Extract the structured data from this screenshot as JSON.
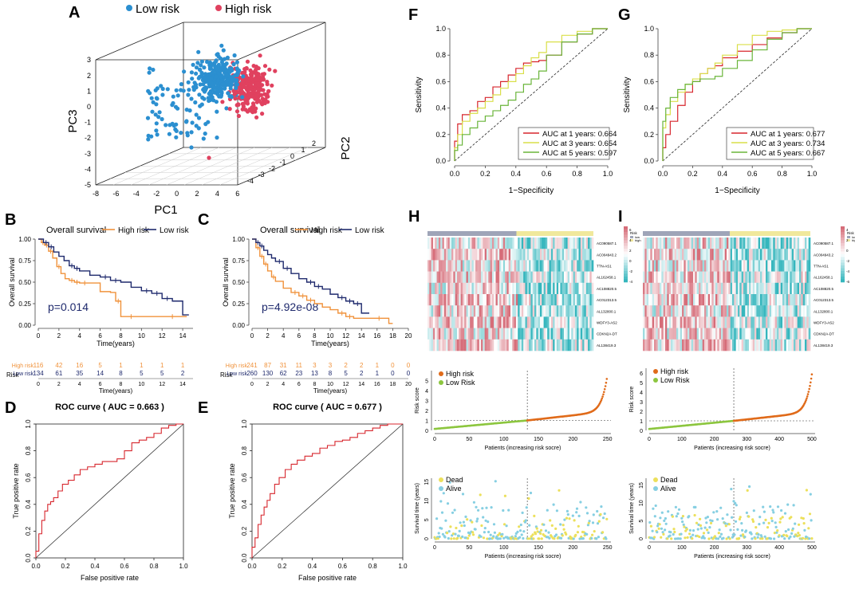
{
  "figure": {
    "panel_letters": [
      "A",
      "B",
      "C",
      "D",
      "E",
      "F",
      "G",
      "H",
      "I"
    ]
  },
  "colors": {
    "low": "#2b8fd0",
    "high": "#e0415f",
    "km_high": "#f0923b",
    "km_low": "#1f2a6d",
    "roc_red": "#d7262d",
    "roc_yellow": "#d9df49",
    "roc_green": "#6ab53a",
    "risk_high": "#e06b1a",
    "risk_low": "#8cc63f",
    "dead": "#ece05b",
    "alive": "#86cfe2",
    "heat_pink": "#d66d79",
    "heat_cyan": "#35b6bd",
    "bar_gray": "#9fa5b8",
    "bar_yellow": "#f0e89c"
  },
  "chart_data": [
    {
      "id": "A",
      "type": "scatter",
      "legend": [
        {
          "label": "Low risk",
          "color": "low"
        },
        {
          "label": "High risk",
          "color": "high"
        }
      ],
      "axes": {
        "x": "PC1",
        "y": "PC2",
        "z": "PC3"
      },
      "x_ticks": [
        "-8",
        "-6",
        "-4",
        "-2",
        "0",
        "2",
        "4",
        "6"
      ],
      "y_ticks": [
        "-4",
        "-3",
        "-2",
        "-1",
        "0",
        "1",
        "2"
      ],
      "z_ticks": [
        "-5",
        "-4",
        "-3",
        "-2",
        "-1",
        "0",
        "1",
        "2",
        "3"
      ],
      "xlim": [
        -8,
        6
      ],
      "ylim": [
        -4,
        2
      ],
      "zlim": [
        -5,
        3
      ]
    },
    {
      "id": "B",
      "type": "line",
      "title": "Overall survival",
      "legend": [
        "High risk",
        "Low risk"
      ],
      "pvalue": "p=0.014",
      "ylabel": "Overall survival",
      "xlabel": "Time(years)",
      "x_ticks": [
        "0",
        "2",
        "4",
        "6",
        "8",
        "10",
        "12",
        "14"
      ],
      "y_ticks": [
        "0.00",
        "0.25",
        "0.50",
        "0.75",
        "1.00"
      ],
      "xlim": [
        0,
        15
      ],
      "ylim": [
        0,
        1
      ],
      "series": [
        {
          "name": "High risk",
          "x": [
            0,
            0.3,
            0.6,
            1,
            1.4,
            1.8,
            2.2,
            2.6,
            3,
            3.5,
            4,
            5,
            6,
            7,
            7.5,
            8,
            10,
            12,
            14,
            14.4
          ],
          "y": [
            1,
            0.96,
            0.93,
            0.86,
            0.78,
            0.68,
            0.6,
            0.54,
            0.52,
            0.5,
            0.49,
            0.49,
            0.39,
            0.38,
            0.28,
            0.1,
            0.1,
            0.1,
            0.1,
            0.1
          ]
        },
        {
          "name": "Low risk",
          "x": [
            0,
            0.5,
            1,
            1.5,
            2,
            2.5,
            3,
            3.5,
            4,
            5,
            6,
            7,
            8,
            9,
            10,
            11,
            12,
            13,
            14,
            14.6
          ],
          "y": [
            1,
            0.96,
            0.91,
            0.85,
            0.8,
            0.75,
            0.69,
            0.66,
            0.63,
            0.58,
            0.56,
            0.52,
            0.5,
            0.44,
            0.4,
            0.37,
            0.31,
            0.28,
            0.12,
            0.12
          ]
        }
      ],
      "risk_table": {
        "label": "Risk",
        "time_ticks": [
          "0",
          "2",
          "4",
          "6",
          "8",
          "10",
          "12",
          "14"
        ],
        "rows": [
          {
            "name": "High risk",
            "values": [
              "116",
              "42",
              "16",
              "5",
              "1",
              "1",
              "1",
              "1"
            ]
          },
          {
            "name": "Low risk",
            "values": [
              "134",
              "61",
              "35",
              "14",
              "8",
              "5",
              "5",
              "2"
            ]
          }
        ],
        "xlabel": "Time(years)"
      }
    },
    {
      "id": "C",
      "type": "line",
      "title": "Overall survival",
      "legend": [
        "High risk",
        "Low risk"
      ],
      "pvalue": "p=4.92e-08",
      "ylabel": "Overall survival",
      "xlabel": "Time(years)",
      "x_ticks": [
        "0",
        "2",
        "4",
        "6",
        "8",
        "10",
        "12",
        "14",
        "16",
        "18",
        "20"
      ],
      "y_ticks": [
        "0.00",
        "0.25",
        "0.50",
        "0.75",
        "1.00"
      ],
      "xlim": [
        0,
        20
      ],
      "ylim": [
        0,
        1
      ],
      "series": [
        {
          "name": "High risk",
          "x": [
            0,
            0.5,
            1,
            1.5,
            2,
            2.5,
            3,
            4,
            5,
            6,
            7,
            8,
            9,
            10,
            11,
            12,
            13,
            15,
            17.5,
            18
          ],
          "y": [
            1,
            0.9,
            0.8,
            0.71,
            0.63,
            0.56,
            0.51,
            0.43,
            0.38,
            0.34,
            0.29,
            0.25,
            0.21,
            0.18,
            0.14,
            0.1,
            0.08,
            0.08,
            0.02,
            0.02
          ]
        },
        {
          "name": "Low risk",
          "x": [
            0,
            0.5,
            1,
            1.5,
            2,
            2.5,
            3,
            4,
            5,
            6,
            7,
            8,
            9,
            10,
            11,
            12,
            13,
            14,
            15
          ],
          "y": [
            1,
            0.96,
            0.92,
            0.87,
            0.82,
            0.78,
            0.74,
            0.66,
            0.6,
            0.54,
            0.5,
            0.45,
            0.42,
            0.36,
            0.32,
            0.28,
            0.25,
            0.14,
            0.14
          ]
        }
      ],
      "risk_table": {
        "label": "Risk",
        "time_ticks": [
          "0",
          "2",
          "4",
          "6",
          "8",
          "10",
          "12",
          "14",
          "16",
          "18",
          "20"
        ],
        "rows": [
          {
            "name": "High risk",
            "values": [
              "241",
              "87",
              "31",
              "11",
              "3",
              "3",
              "2",
              "2",
              "1",
              "0",
              "0"
            ]
          },
          {
            "name": "Low risk",
            "values": [
              "260",
              "130",
              "62",
              "23",
              "13",
              "8",
              "5",
              "2",
              "1",
              "0",
              "0"
            ]
          }
        ],
        "xlabel": "Time(years)"
      }
    },
    {
      "id": "D",
      "type": "line",
      "title": "ROC curve ( AUC =  0.663 )",
      "xlabel": "False positive rate",
      "ylabel": "True positive rate",
      "x_ticks": [
        "0.0",
        "0.2",
        "0.4",
        "0.6",
        "0.8",
        "1.0"
      ],
      "y_ticks": [
        "0.0",
        "0.2",
        "0.4",
        "0.6",
        "0.8",
        "1.0"
      ],
      "xlim": [
        0,
        1
      ],
      "ylim": [
        0,
        1
      ],
      "series": [
        {
          "name": "ROC",
          "x": [
            0,
            0.02,
            0.04,
            0.06,
            0.08,
            0.1,
            0.12,
            0.15,
            0.18,
            0.22,
            0.26,
            0.3,
            0.35,
            0.4,
            0.45,
            0.5,
            0.55,
            0.6,
            0.65,
            0.7,
            0.75,
            0.8,
            0.85,
            0.9,
            0.95,
            1
          ],
          "y": [
            0,
            0.05,
            0.18,
            0.28,
            0.35,
            0.4,
            0.42,
            0.45,
            0.5,
            0.55,
            0.58,
            0.62,
            0.66,
            0.68,
            0.7,
            0.72,
            0.72,
            0.74,
            0.8,
            0.86,
            0.88,
            0.9,
            0.93,
            0.97,
            0.99,
            1
          ]
        }
      ]
    },
    {
      "id": "E",
      "type": "line",
      "title": "ROC curve ( AUC =  0.677 )",
      "xlabel": "False positive rate",
      "ylabel": "True positive rate",
      "x_ticks": [
        "0.0",
        "0.2",
        "0.4",
        "0.6",
        "0.8",
        "1.0"
      ],
      "y_ticks": [
        "0.0",
        "0.2",
        "0.4",
        "0.6",
        "0.8",
        "1.0"
      ],
      "xlim": [
        0,
        1
      ],
      "ylim": [
        0,
        1
      ],
      "series": [
        {
          "name": "ROC",
          "x": [
            0,
            0.02,
            0.04,
            0.06,
            0.08,
            0.1,
            0.12,
            0.15,
            0.18,
            0.22,
            0.26,
            0.3,
            0.35,
            0.4,
            0.45,
            0.5,
            0.55,
            0.6,
            0.65,
            0.7,
            0.75,
            0.8,
            0.85,
            0.9,
            0.95,
            1
          ],
          "y": [
            0,
            0.08,
            0.15,
            0.25,
            0.32,
            0.38,
            0.43,
            0.48,
            0.55,
            0.6,
            0.66,
            0.7,
            0.73,
            0.76,
            0.78,
            0.82,
            0.84,
            0.87,
            0.88,
            0.9,
            0.93,
            0.95,
            0.97,
            0.99,
            1,
            1
          ]
        }
      ]
    },
    {
      "id": "F",
      "type": "line",
      "xlabel": "1−Specificity",
      "ylabel": "Sensitivity",
      "x_ticks": [
        "0.0",
        "0.2",
        "0.4",
        "0.6",
        "0.8",
        "1.0"
      ],
      "y_ticks": [
        "0.0",
        "0.2",
        "0.4",
        "0.6",
        "0.8",
        "1.0"
      ],
      "xlim": [
        0,
        1
      ],
      "ylim": [
        0,
        1
      ],
      "series": [
        {
          "name": "AUC at 1 years: 0.664",
          "color": "roc_red",
          "x": [
            0,
            0.02,
            0.05,
            0.1,
            0.15,
            0.2,
            0.25,
            0.3,
            0.35,
            0.4,
            0.45,
            0.5,
            0.55,
            0.6,
            0.7,
            0.8,
            0.9,
            1
          ],
          "y": [
            0,
            0.15,
            0.28,
            0.35,
            0.38,
            0.45,
            0.48,
            0.56,
            0.6,
            0.65,
            0.7,
            0.74,
            0.75,
            0.76,
            0.8,
            0.9,
            0.96,
            1
          ]
        },
        {
          "name": "AUC at 3 years: 0.654",
          "color": "roc_yellow",
          "x": [
            0,
            0.02,
            0.05,
            0.1,
            0.15,
            0.2,
            0.25,
            0.3,
            0.35,
            0.4,
            0.45,
            0.5,
            0.55,
            0.6,
            0.7,
            0.8,
            0.9,
            1
          ],
          "y": [
            0,
            0.1,
            0.2,
            0.3,
            0.36,
            0.4,
            0.45,
            0.5,
            0.55,
            0.6,
            0.66,
            0.72,
            0.78,
            0.82,
            0.9,
            0.95,
            0.98,
            1
          ]
        },
        {
          "name": "AUC at 5 years: 0.597",
          "color": "roc_green",
          "x": [
            0,
            0.02,
            0.05,
            0.1,
            0.15,
            0.2,
            0.25,
            0.3,
            0.35,
            0.4,
            0.45,
            0.5,
            0.55,
            0.6,
            0.7,
            0.8,
            0.9,
            1
          ],
          "y": [
            0,
            0.08,
            0.12,
            0.2,
            0.25,
            0.3,
            0.34,
            0.38,
            0.42,
            0.46,
            0.52,
            0.58,
            0.62,
            0.68,
            0.8,
            0.9,
            0.96,
            1
          ]
        }
      ]
    },
    {
      "id": "G",
      "type": "line",
      "xlabel": "1−Specificity",
      "ylabel": "Sensitivity",
      "x_ticks": [
        "0.0",
        "0.2",
        "0.4",
        "0.6",
        "0.8",
        "1.0"
      ],
      "y_ticks": [
        "0.0",
        "0.2",
        "0.4",
        "0.6",
        "0.8",
        "1.0"
      ],
      "xlim": [
        0,
        1
      ],
      "ylim": [
        0,
        1
      ],
      "series": [
        {
          "name": "AUC at 1 years: 0.677",
          "color": "roc_red",
          "x": [
            0,
            0.02,
            0.05,
            0.1,
            0.15,
            0.2,
            0.25,
            0.3,
            0.35,
            0.4,
            0.5,
            0.6,
            0.7,
            0.8,
            0.9,
            1
          ],
          "y": [
            0,
            0.1,
            0.2,
            0.3,
            0.42,
            0.52,
            0.6,
            0.66,
            0.7,
            0.72,
            0.78,
            0.83,
            0.88,
            0.93,
            0.97,
            1
          ]
        },
        {
          "name": "AUC at 3 years: 0.734",
          "color": "roc_yellow",
          "x": [
            0,
            0.02,
            0.05,
            0.1,
            0.15,
            0.2,
            0.25,
            0.3,
            0.35,
            0.4,
            0.5,
            0.6,
            0.7,
            0.8,
            0.9,
            1
          ],
          "y": [
            0,
            0.25,
            0.35,
            0.45,
            0.52,
            0.58,
            0.62,
            0.66,
            0.7,
            0.74,
            0.8,
            0.88,
            0.95,
            0.98,
            0.99,
            1
          ]
        },
        {
          "name": "AUC at 5 years: 0.667",
          "color": "roc_green",
          "x": [
            0,
            0.02,
            0.05,
            0.1,
            0.15,
            0.2,
            0.25,
            0.3,
            0.35,
            0.4,
            0.5,
            0.6,
            0.7,
            0.8,
            0.9,
            1
          ],
          "y": [
            0,
            0.3,
            0.4,
            0.48,
            0.54,
            0.58,
            0.6,
            0.62,
            0.62,
            0.64,
            0.7,
            0.76,
            0.84,
            0.92,
            0.97,
            1
          ]
        }
      ]
    },
    {
      "id": "H",
      "type": "heatmap",
      "genes": [
        "AC090587.1",
        "AC004943.2",
        "TTN-AS1",
        "AL162458.1",
        "AC108820.5",
        "AC012313.5",
        "AL132800.1",
        "WDFY3-AS2",
        "CDKN2A-DT",
        "AL138419.3"
      ],
      "legend_title": "Risk",
      "legend_items": [
        "low",
        "high"
      ],
      "scale": [
        "6",
        "4",
        "2",
        "0",
        "-2",
        "-4"
      ],
      "n_low": 134,
      "n_high": 116
    },
    {
      "id": "I",
      "type": "heatmap",
      "genes": [
        "AC090587.1",
        "AC004943.2",
        "TTN-AS1",
        "AL162458.1",
        "AC108820.5",
        "AC012313.5",
        "AL132800.1",
        "WDFY3-AS2",
        "CDKN2A-DT",
        "AL138419.3"
      ],
      "legend_title": "Risk",
      "legend_items": [
        "low",
        "high"
      ],
      "scale": [
        "4",
        "2",
        "0",
        "-2",
        "-4",
        "-6"
      ],
      "n_low": 260,
      "n_high": 241
    },
    {
      "id": "H2",
      "type": "scatter",
      "legend": [
        "High risk",
        "Low Risk"
      ],
      "xlabel": "Patients (increasing risk socre)",
      "ylabel": "Risk score",
      "x_ticks": [
        "0",
        "50",
        "100",
        "150",
        "200",
        "250"
      ],
      "y_ticks": [
        "0",
        "1",
        "2",
        "3",
        "4",
        "5"
      ],
      "xlim": [
        0,
        255
      ],
      "ylim": [
        0,
        6
      ],
      "cutoff_index": 134,
      "cutoff_score": 1,
      "n": 250,
      "max_score": 5.6
    },
    {
      "id": "I2",
      "type": "scatter",
      "legend": [
        "High risk",
        "Low Risk"
      ],
      "xlabel": "Patients (increasing risk socre)",
      "ylabel": "Risk score",
      "x_ticks": [
        "0",
        "100",
        "200",
        "300",
        "400",
        "500"
      ],
      "y_ticks": [
        "0",
        "1",
        "2",
        "3",
        "4",
        "5",
        "6"
      ],
      "xlim": [
        0,
        510
      ],
      "ylim": [
        0,
        6.5
      ],
      "cutoff_index": 260,
      "cutoff_score": 1,
      "n": 501,
      "max_score": 6.1
    },
    {
      "id": "H3",
      "type": "scatter",
      "legend": [
        "Dead",
        "Alive"
      ],
      "xlabel": "Patients (increasing risk socre)",
      "ylabel": "Survival time (years)",
      "x_ticks": [
        "0",
        "50",
        "100",
        "150",
        "200",
        "250"
      ],
      "y_ticks": [
        "0",
        "5",
        "10",
        "15"
      ],
      "xlim": [
        0,
        255
      ],
      "ylim": [
        0,
        16
      ],
      "cutoff_index": 134,
      "n": 250
    },
    {
      "id": "I3",
      "type": "scatter",
      "legend": [
        "Dead",
        "Alive"
      ],
      "xlabel": "Patients (increasing risk socre)",
      "ylabel": "Survival time (years)",
      "x_ticks": [
        "0",
        "100",
        "200",
        "300",
        "400",
        "500"
      ],
      "y_ticks": [
        "0",
        "5",
        "10",
        "15"
      ],
      "xlim": [
        0,
        510
      ],
      "ylim": [
        0,
        17
      ],
      "cutoff_index": 260,
      "n": 501
    }
  ]
}
